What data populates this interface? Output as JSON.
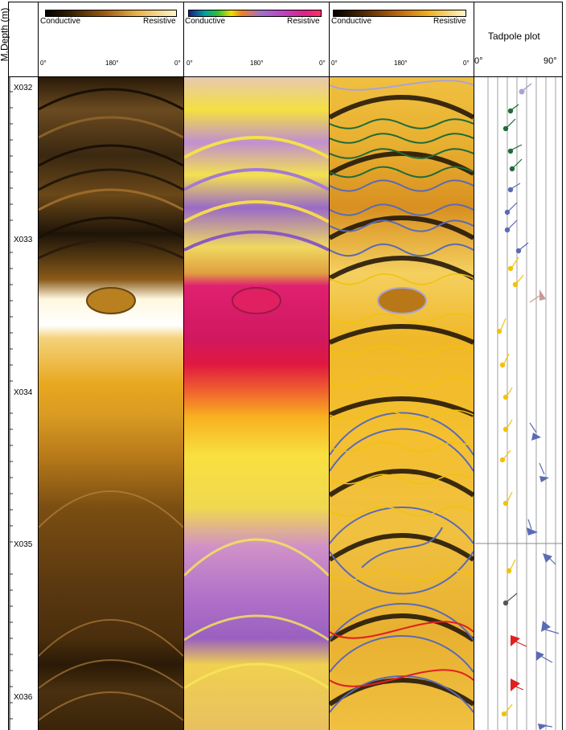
{
  "depth_track": {
    "title": "M.Depth (m)",
    "labels": [
      "X032",
      "X033",
      "X034",
      "X035",
      "X036"
    ]
  },
  "panels": [
    {
      "left_label": "Conductive",
      "right_label": "Resistive",
      "ticks": [
        "0°",
        "180°",
        "0°"
      ],
      "colormap": "brown-yellow-white"
    },
    {
      "left_label": "Conductive",
      "right_label": "Resistive",
      "ticks": [
        "0°",
        "180°",
        "0°"
      ],
      "colormap": "rainbow-pink"
    },
    {
      "left_label": "Conductive",
      "right_label": "Resistive",
      "ticks": [
        "0°",
        "180°",
        "0°"
      ],
      "colormap": "black-orange-yellow-white"
    }
  ],
  "tadpole": {
    "title": "Tadpole plot",
    "scale_min": "0°",
    "scale_max": "90°"
  },
  "colors": {
    "green": "#1f6b3a",
    "blue": "#5a6bb4",
    "yellow": "#f2c20a",
    "lavender": "#a9a3d6",
    "pink": "#c99a98",
    "red": "#e02020",
    "grey": "#555555"
  }
}
